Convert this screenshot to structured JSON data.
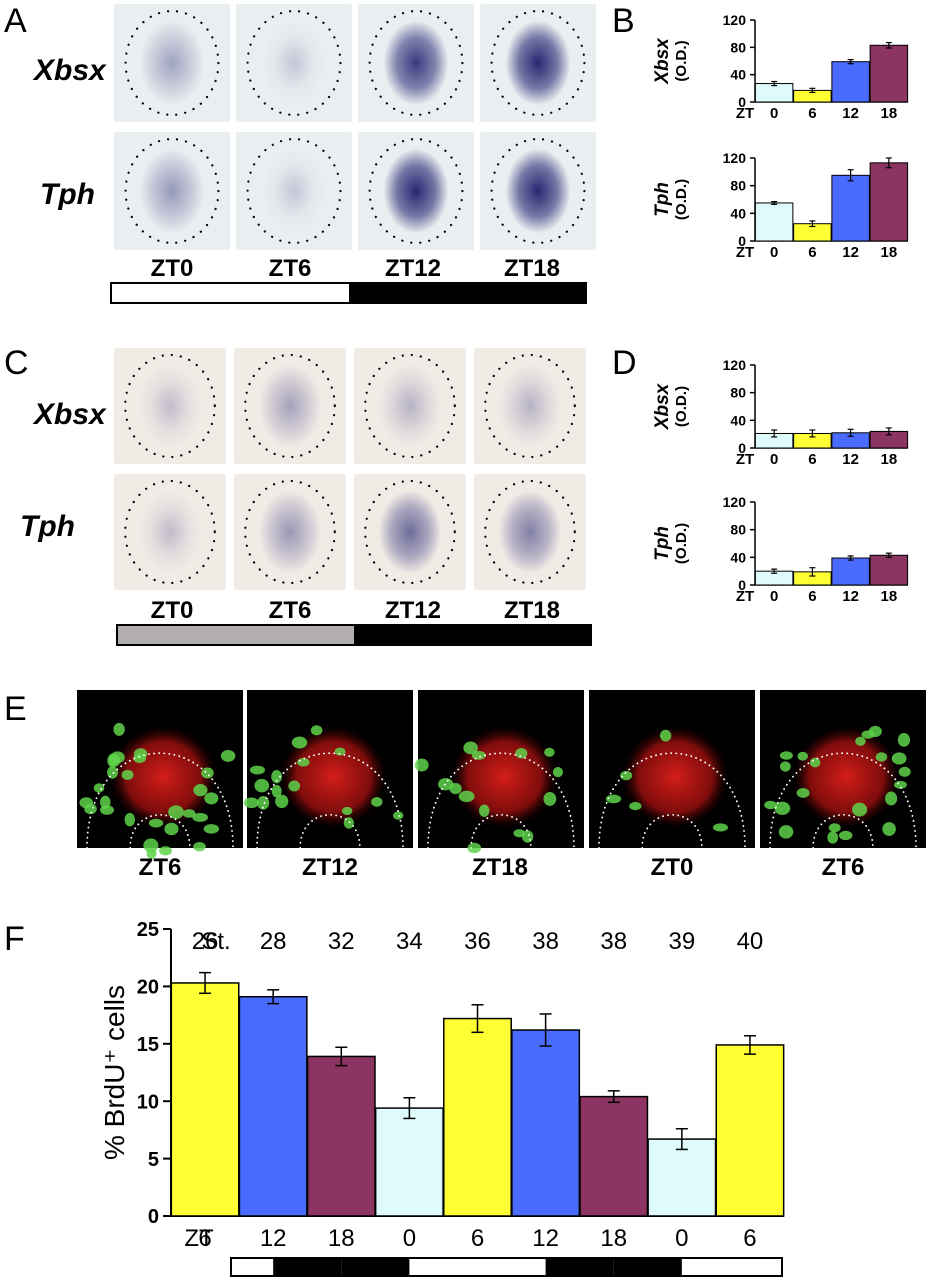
{
  "panels": {
    "A": "A",
    "B": "B",
    "C": "C",
    "D": "D",
    "E": "E",
    "F": "F"
  },
  "panel_A": {
    "rows": [
      "Xbsx",
      "Tph"
    ],
    "columns": [
      "ZT0",
      "ZT6",
      "ZT12",
      "ZT18"
    ],
    "stain_level": {
      "Xbsx": [
        0.25,
        0.05,
        0.85,
        0.95
      ],
      "Tph": [
        0.3,
        0.05,
        0.95,
        0.95
      ]
    },
    "light_dark": [
      "light",
      "light",
      "dark",
      "dark"
    ]
  },
  "panel_C": {
    "rows": [
      "Xbsx",
      "Tph"
    ],
    "columns": [
      "ZT0",
      "ZT6",
      "ZT12",
      "ZT18"
    ],
    "stain_level": {
      "Xbsx": [
        0.1,
        0.25,
        0.15,
        0.15
      ],
      "Tph": [
        0.1,
        0.3,
        0.55,
        0.45
      ]
    },
    "light_dark": [
      "gray",
      "gray",
      "dark",
      "dark"
    ]
  },
  "panel_E": {
    "columns": [
      "ZT6",
      "ZT12",
      "ZT18",
      "ZT0",
      "ZT6"
    ]
  },
  "colors": {
    "ZT0": "#dffafa",
    "ZT6": "#ffff33",
    "ZT12": "#4a6bff",
    "ZT18": "#8c3562",
    "stain": "#1f1f6e",
    "light": "#ffffff",
    "dark": "#000000",
    "gray": "#b3aeae"
  },
  "chart_data": [
    {
      "id": "B-Xbsx",
      "type": "bar",
      "ylabel": "Xbsx",
      "yunit": "(O.D.)",
      "xlabel": "ZT",
      "categories": [
        "0",
        "6",
        "12",
        "18"
      ],
      "values": [
        27,
        17,
        59,
        83
      ],
      "errors": [
        3,
        3,
        3,
        4
      ],
      "ylim": [
        0,
        120
      ],
      "yticks": [
        "0",
        "40",
        "80",
        "120"
      ]
    },
    {
      "id": "B-Tph",
      "type": "bar",
      "ylabel": "Tph",
      "yunit": "(O.D.)",
      "xlabel": "ZT",
      "categories": [
        "0",
        "6",
        "12",
        "18"
      ],
      "values": [
        55,
        25,
        95,
        113
      ],
      "errors": [
        2,
        4,
        8,
        7
      ],
      "ylim": [
        0,
        120
      ],
      "yticks": [
        "0",
        "40",
        "80",
        "120"
      ]
    },
    {
      "id": "D-Xbsx",
      "type": "bar",
      "ylabel": "Xbsx",
      "yunit": "(O.D.)",
      "xlabel": "ZT",
      "categories": [
        "0",
        "6",
        "12",
        "18"
      ],
      "values": [
        21,
        21,
        22,
        24
      ],
      "errors": [
        5,
        5,
        5,
        5
      ],
      "ylim": [
        0,
        120
      ],
      "yticks": [
        "0",
        "40",
        "80",
        "120"
      ]
    },
    {
      "id": "D-Tph",
      "type": "bar",
      "ylabel": "Tph",
      "yunit": "(O.D.)",
      "xlabel": "ZT",
      "categories": [
        "0",
        "6",
        "12",
        "18"
      ],
      "values": [
        20,
        19,
        39,
        43
      ],
      "errors": [
        3,
        6,
        3,
        3
      ],
      "ylim": [
        0,
        120
      ],
      "yticks": [
        "0",
        "40",
        "80",
        "120"
      ]
    },
    {
      "id": "F",
      "type": "bar",
      "ylabel": "% BrdU⁺ cells",
      "xlabel": "ZT",
      "stage_label": "St.",
      "stages": [
        "26",
        "28",
        "32",
        "34",
        "36",
        "38",
        "38",
        "39",
        "40"
      ],
      "categories": [
        "6",
        "12",
        "18",
        "0",
        "6",
        "12",
        "18",
        "0",
        "6"
      ],
      "values": [
        20.3,
        19.1,
        13.9,
        9.4,
        17.2,
        16.2,
        10.4,
        6.7,
        14.9
      ],
      "errors": [
        0.9,
        0.6,
        0.8,
        0.9,
        1.2,
        1.4,
        0.5,
        0.9,
        0.8
      ],
      "ylim": [
        0,
        25
      ],
      "yticks": [
        "0",
        "5",
        "10",
        "15",
        "20",
        "25"
      ],
      "light_dark": [
        "light",
        "dark",
        "dark",
        "light",
        "light",
        "dark",
        "dark",
        "light",
        "light"
      ]
    }
  ]
}
